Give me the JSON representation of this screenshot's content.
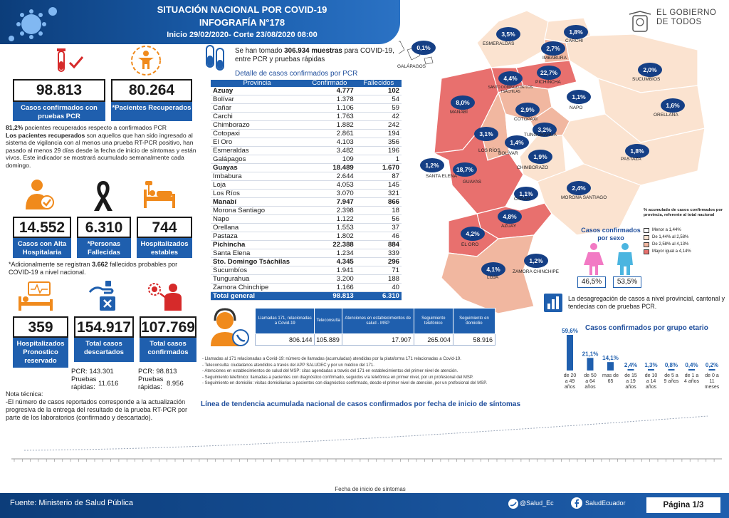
{
  "header": {
    "line1": "SITUACIÓN NACIONAL POR  COVID-19",
    "line2": "INFOGRAFÍA N°178",
    "line3": "Inicio 29/02/2020- Corte 23/08/2020 08:00"
  },
  "logo": "EL GOBIERNO DE TODOS",
  "stats": {
    "pcr_confirmed": {
      "value": "98.813",
      "label": "Casos confirmados con pruebas PCR"
    },
    "recovered": {
      "value": "80.264",
      "label": "*Pacientes Recuperados"
    },
    "recovered_pct": "81,2%",
    "recovered_text": " pacientes recuperados respecto a confirmados PCR",
    "recovered_def_bold": "Los pacientes recuperados",
    "recovered_def": " son aquellos que han sido ingresado al sistema de vigilancia con al menos una prueba RT-PCR positivo, han pasado al menos 29 días desde la fecha de inicio de síntomas y están vivos. Este indicador se mostrará acumulado semanalmente cada domingo.",
    "discharged": {
      "value": "14.552",
      "label": "Casos con Alta Hospitalaria"
    },
    "deceased": {
      "value": "6.310",
      "label": "*Personas Fallecidas"
    },
    "hospital_stable": {
      "value": "744",
      "label": "Hospitalizados estables"
    },
    "probable_pre": "*Adicionalmente se registran ",
    "probable_num": "3.662",
    "probable_post": " fallecidos probables por COVID-19 a nivel nacional.",
    "hospital_reserved": {
      "value": "359",
      "label": "Hospitalizados Pronostico reservado"
    },
    "discarded": {
      "value": "154.917",
      "label": "Total casos descartados"
    },
    "confirmed_total": {
      "value": "107.769",
      "label": "Total casos confirmados"
    },
    "discarded_pcr_label": "PCR:",
    "discarded_pcr": "143.301",
    "discarded_rapid_label": "Pruebas rápidas:",
    "discarded_rapid": "11.616",
    "confirmed_pcr_label": "PCR:",
    "confirmed_pcr": "98.813",
    "confirmed_rapid_label": "Pruebas rápidas:",
    "confirmed_rapid": "8.956"
  },
  "tech_note": {
    "title": "Nota técnica:",
    "text": "-El número de casos reportados corresponde a la actualización progresiva de la entrega del resultado de la prueba RT-PCR por parte de los laboratorios (confirmado y descartado)."
  },
  "samples": {
    "pre": "Se han tomado ",
    "num": "306.934",
    "mid": " muestras",
    "post": " para COVID-19, entre PCR y pruebas rápidas"
  },
  "table_title": "Detalle de casos confirmados por PCR",
  "table_headers": [
    "Provincia",
    "Confirmado",
    "Fallecidos"
  ],
  "provinces": [
    [
      "Azuay",
      "4.777",
      "102"
    ],
    [
      "Bolívar",
      "1.378",
      "54"
    ],
    [
      "Cañar",
      "1.106",
      "59"
    ],
    [
      "Carchi",
      "1.763",
      "42"
    ],
    [
      "Chimborazo",
      "1.882",
      "242"
    ],
    [
      "Cotopaxi",
      "2.861",
      "194"
    ],
    [
      "El Oro",
      "4.103",
      "356"
    ],
    [
      "Esmeraldas",
      "3.482",
      "196"
    ],
    [
      "Galápagos",
      "109",
      "1"
    ],
    [
      "Guayas",
      "18.489",
      "1.670"
    ],
    [
      "Imbabura",
      "2.644",
      "87"
    ],
    [
      "Loja",
      "4.053",
      "145"
    ],
    [
      "Los Ríos",
      "3.070",
      "321"
    ],
    [
      "Manabí",
      "7.947",
      "866"
    ],
    [
      "Morona Santiago",
      "2.398",
      "18"
    ],
    [
      "Napo",
      "1.122",
      "56"
    ],
    [
      "Orellana",
      "1.553",
      "37"
    ],
    [
      "Pastaza",
      "1.802",
      "46"
    ],
    [
      "Pichincha",
      "22.388",
      "884"
    ],
    [
      "Santa Elena",
      "1.234",
      "339"
    ],
    [
      "Sto. Domingo Tsáchilas",
      "4.345",
      "296"
    ],
    [
      "Sucumbíos",
      "1.941",
      "71"
    ],
    [
      "Tungurahua",
      "3.200",
      "188"
    ],
    [
      "Zamora Chinchipe",
      "1.166",
      "40"
    ]
  ],
  "table_total": [
    "Total general",
    "98.813",
    "6.310"
  ],
  "calls": {
    "headers": [
      "Llamadas 171, relacionadas a Covid-19",
      "Teleconsulta",
      "Atenciones en establecimientos de salud - MSP",
      "Seguimiento telefónico",
      "Seguimiento en domicilio"
    ],
    "values": [
      "806.144",
      "105.889",
      "17.907",
      "265.004",
      "58.916"
    ],
    "notes": [
      "- Llamadas al 171 relacionadas a Covid-19: número de llamadas (acumuladas) atendidas por la plataforma 171 relacionadas a Covid-19.",
      "- Teleconsulta: ciudadanos atendidos a través del APP SALUDEC y por un médico del 171.",
      "- Atenciones en establecimientos de salud del MSP: citas agendadas a través del 171 en establecimientos del primer nivel de atención.",
      "- Seguimiento telefónico: llamadas a pacientes con diagnóstico confirmado, seguidos vía telefónica en primer nivel, por un profesional del MSP.",
      "- Seguimiento en domicilio: visitas domiciliarias a pacientes con diagnóstico confirmado, desde el primer nivel de atención, por un profesional del MSP."
    ]
  },
  "map": {
    "badges": [
      {
        "t": "0,1%",
        "place": "GALÁPAGOS"
      },
      {
        "t": "3,5%",
        "place": "ESMERALDAS"
      },
      {
        "t": "1,8%",
        "place": "CARCHI"
      },
      {
        "t": "2,7%",
        "place": "IMBABURA"
      },
      {
        "t": "22,7%",
        "place": "PICHINCHA"
      },
      {
        "t": "4,4%",
        "place": "SANTO DOMINGO DE LOS TSÁCHILAS"
      },
      {
        "t": "2,0%",
        "place": "SUCUMBÍOS"
      },
      {
        "t": "8,0%",
        "place": "MANABÍ"
      },
      {
        "t": "1,1%",
        "place": "NAPO"
      },
      {
        "t": "2,9%",
        "place": "COTOPAXI"
      },
      {
        "t": "1,6%",
        "place": "ORELLANA"
      },
      {
        "t": "3,1%",
        "place": "LOS RÍOS"
      },
      {
        "t": "3,2%",
        "place": "TUNGURAHUA"
      },
      {
        "t": "1,4%",
        "place": "BOLÍVAR"
      },
      {
        "t": "1,2%",
        "place": "SANTA ELENA"
      },
      {
        "t": "1,9%",
        "place": "CHIMBORAZO"
      },
      {
        "t": "1,8%",
        "place": "PASTAZA"
      },
      {
        "t": "18,7%",
        "place": "GUAYAS"
      },
      {
        "t": "1,1%",
        "place": "CAÑAR"
      },
      {
        "t": "2,4%",
        "place": "MORONA SANTIAGO"
      },
      {
        "t": "4,8%",
        "place": "AZUAY"
      },
      {
        "t": "4,2%",
        "place": "EL ORO"
      },
      {
        "t": "1,2%",
        "place": "ZAMORA CHINCHIPE"
      },
      {
        "t": "4,1%",
        "place": "LOJA"
      }
    ],
    "legend_title": "% acumulado de casos confirmados por provincia, referente al total nacional",
    "legend": [
      "Menor a 1,44%",
      "De 1,44% al 2,58%",
      "De 2,58% al 4,13%",
      "Mayor igual a 4,14%"
    ],
    "legend_colors": [
      "#ffffff",
      "#fbe3d0",
      "#f1b7a0",
      "#e8706e"
    ]
  },
  "sex": {
    "title": "Casos confirmados por sexo",
    "female": "46,5%",
    "male": "53,5%"
  },
  "disaggregation": "La desagregación de casos a nivel provincial, cantonal y tendecias con  de pruebas PCR.",
  "age_chart": {
    "title": "Casos confirmados por grupo etario",
    "chart_data": {
      "type": "bar",
      "categories": [
        "de 20 a 49 años",
        "de 50 a 64 años",
        "mas de 65",
        "de 15 a 19 años",
        "de 10 a 14 años",
        "de 5 a 9 años",
        "de 1 a 4 años",
        "de 0 a 11 meses"
      ],
      "values": [
        59.6,
        21.1,
        14.1,
        2.4,
        1.3,
        0.8,
        0.4,
        0.2
      ],
      "labels": [
        "59,6%",
        "21,1%",
        "14,1%",
        "2,4%",
        "1,3%",
        "0,8%",
        "0,4%",
        "0,2%"
      ]
    }
  },
  "trend": {
    "title": "Línea de tendencia acumulada nacional de casos confirmados por fecha de inicio de síntomas",
    "xlabel": "Fecha de inicio de síntomas"
  },
  "footer": {
    "source_label": "Fuente: ",
    "source": "Ministerio de Salud Pública",
    "twitter": "@Salud_Ec",
    "facebook": "SaludEcuador",
    "page": "Página 1/3"
  },
  "colors": {
    "primary": "#1f5fae",
    "dark": "#0c3d7a",
    "badge": "#153f85",
    "high": "#e8706e"
  }
}
